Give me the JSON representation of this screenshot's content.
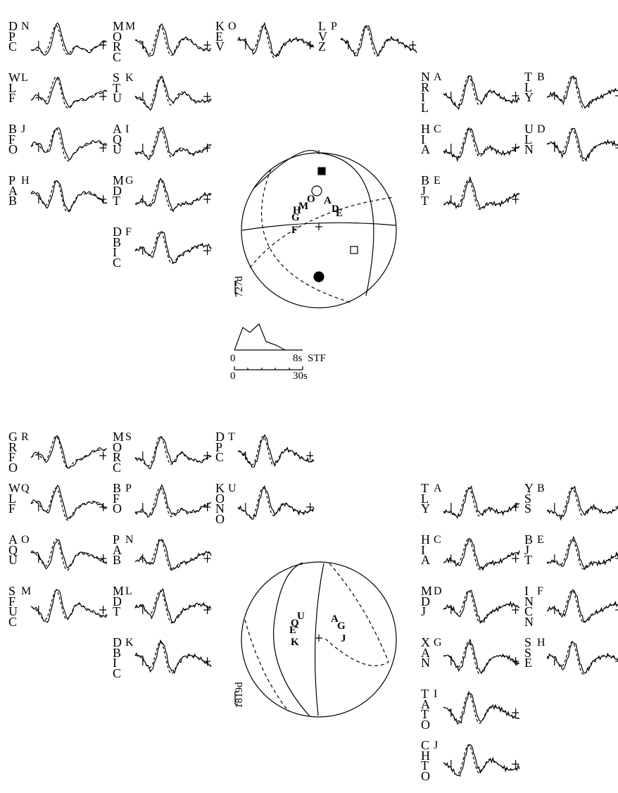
{
  "top": {
    "traces": [
      {
        "station": "DPC",
        "tag": "N"
      },
      {
        "station": "WLF",
        "tag": "L"
      },
      {
        "station": "BFO",
        "tag": "J"
      },
      {
        "station": "PAB",
        "tag": "H"
      },
      {
        "station": "MORC",
        "tag": "M"
      },
      {
        "station": "STU",
        "tag": "K"
      },
      {
        "station": "AQU",
        "tag": "I"
      },
      {
        "station": "MDT",
        "tag": "G"
      },
      {
        "station": "DBIC",
        "tag": "F"
      },
      {
        "station": "KEV",
        "tag": "O"
      },
      {
        "station": "LVZ",
        "tag": "P"
      },
      {
        "station": "NRIL",
        "tag": "A"
      },
      {
        "station": "HIA",
        "tag": "C"
      },
      {
        "station": "BJT",
        "tag": "E"
      },
      {
        "station": "TLY",
        "tag": "B"
      },
      {
        "station": "ULN",
        "tag": "D"
      }
    ],
    "sphere_labels": [
      "O",
      "A",
      "H",
      "M",
      "G",
      "F",
      "D",
      "E"
    ],
    "scale": "727d",
    "stf": {
      "label": "STF",
      "ticks": [
        "0",
        "8s"
      ],
      "time_ticks": [
        "0",
        "30s"
      ]
    }
  },
  "bottom": {
    "traces": [
      {
        "station": "GRFO",
        "tag": "R"
      },
      {
        "station": "WLF",
        "tag": "Q"
      },
      {
        "station": "AQU",
        "tag": "O"
      },
      {
        "station": "SFUC",
        "tag": "M"
      },
      {
        "station": "MORC",
        "tag": "S"
      },
      {
        "station": "BFO",
        "tag": "P"
      },
      {
        "station": "PAB",
        "tag": "N"
      },
      {
        "station": "MDT",
        "tag": "L"
      },
      {
        "station": "DBIC",
        "tag": "K"
      },
      {
        "station": "DPC",
        "tag": "T"
      },
      {
        "station": "KONO",
        "tag": "U"
      },
      {
        "station": "TLY",
        "tag": "A"
      },
      {
        "station": "HIA",
        "tag": "C"
      },
      {
        "station": "MDJ",
        "tag": "D"
      },
      {
        "station": "XAN",
        "tag": "G"
      },
      {
        "station": "TATO",
        "tag": "I"
      },
      {
        "station": "CHTO",
        "tag": "J"
      },
      {
        "station": "YSS",
        "tag": "B"
      },
      {
        "station": "BJT",
        "tag": "E"
      },
      {
        "station": "INCN",
        "tag": "F"
      },
      {
        "station": "SSE",
        "tag": "H"
      }
    ],
    "sphere_labels": [
      "U",
      "Q",
      "E",
      "K",
      "A",
      "G",
      "J"
    ],
    "scale": "1819d"
  }
}
